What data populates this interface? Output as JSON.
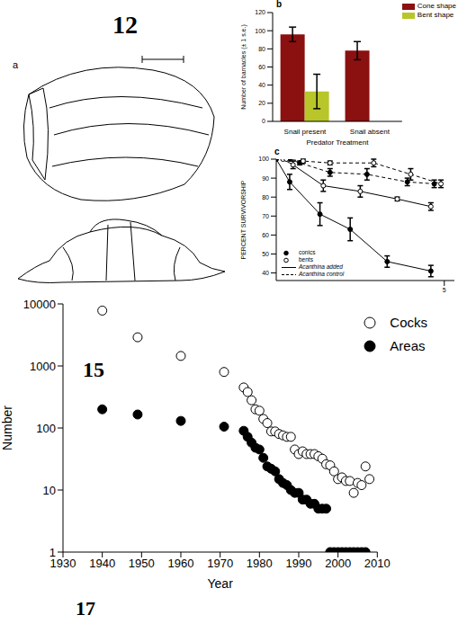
{
  "figure": {
    "labels": [
      "12",
      "15",
      "17"
    ],
    "drawing": {
      "letter": "a",
      "scale": "1mm"
    }
  },
  "chart_data": [
    {
      "type": "bar",
      "letter": "b",
      "x_label": "Predator Treatment",
      "y_label": "Number of barnacles (± 1 s.e.)",
      "categories": [
        "Snail present",
        "Snail absent"
      ],
      "series": [
        {
          "name": "Cone shape",
          "color": "#8b1010",
          "values": [
            96,
            78
          ],
          "errors": [
            8,
            10
          ]
        },
        {
          "name": "Bent shape",
          "color": "#b8c62a",
          "values": [
            33,
            null
          ],
          "errors": [
            19,
            null
          ]
        }
      ],
      "ylim": [
        0,
        120
      ],
      "yticks": [
        0,
        20,
        40,
        60,
        80,
        100,
        120
      ],
      "legend": "upper right"
    },
    {
      "type": "line",
      "letter": "c",
      "y_label": "PERCENT SURVIVORSHIP",
      "xlim": [
        0,
        5.3
      ],
      "xticks": [
        5
      ],
      "ylim": [
        36,
        100
      ],
      "yticks": [
        40,
        50,
        60,
        70,
        80,
        90,
        100
      ],
      "series": [
        {
          "marker": "filled",
          "line_style": "solid",
          "x": [
            0,
            0.4,
            1.3,
            2.2,
            3.3,
            4.6
          ],
          "values": [
            100,
            88,
            71,
            63,
            46,
            41
          ],
          "errors": [
            0,
            4,
            6,
            6,
            3,
            3
          ]
        },
        {
          "marker": "open",
          "line_style": "solid",
          "x": [
            0.2,
            0.5,
            1.4,
            2.5,
            3.6,
            4.6
          ],
          "values": [
            100,
            97,
            86,
            83,
            79,
            75
          ],
          "errors": [
            0,
            2,
            3,
            3,
            1,
            2
          ]
        },
        {
          "marker": "filled",
          "line_style": "dashed",
          "x": [
            0.4,
            0.7,
            1.6,
            2.7,
            3.9,
            4.7
          ],
          "values": [
            100,
            98,
            93,
            92,
            88,
            87
          ],
          "errors": [
            0,
            1,
            2,
            3,
            2,
            2
          ]
        },
        {
          "marker": "open",
          "line_style": "dashed",
          "x": [
            0.3,
            0.8,
            1.6,
            2.9,
            4.0,
            4.9
          ],
          "values": [
            100,
            99,
            98,
            98,
            92,
            87
          ],
          "errors": [
            0,
            1,
            1,
            2,
            3,
            2
          ]
        }
      ],
      "key": [
        {
          "label": "conics",
          "marker": "filled"
        },
        {
          "label": "bents",
          "marker": "open"
        },
        {
          "label": "Acanthina added",
          "line_style": "solid"
        },
        {
          "label": "Acanthina control",
          "line_style": "dashed"
        }
      ]
    },
    {
      "type": "scatter",
      "x_label": "Year",
      "y_label": "Number",
      "log": "y",
      "xlim": [
        1930,
        2010
      ],
      "xticks": [
        1930,
        1940,
        1950,
        1960,
        1970,
        1980,
        1990,
        2000,
        2010
      ],
      "ylim": [
        1,
        10000
      ],
      "yticks": [
        1,
        10,
        100,
        1000,
        10000
      ],
      "legend": "upper right",
      "series": [
        {
          "name": "Cocks",
          "marker": "open",
          "color": "#000000",
          "x": [
            1940,
            1949,
            1960,
            1971,
            1976,
            1977,
            1978,
            1979,
            1980,
            1981,
            1982,
            1983,
            1984,
            1985,
            1986,
            1987,
            1988,
            1989,
            1990,
            1991,
            1992,
            1993,
            1994,
            1995,
            1996,
            1997,
            1998,
            1999,
            2000,
            2001,
            2002,
            2003,
            2004,
            2005,
            2006,
            2007,
            2008
          ],
          "values": [
            7800,
            2900,
            1450,
            800,
            450,
            380,
            280,
            200,
            190,
            140,
            120,
            88,
            88,
            80,
            76,
            72,
            72,
            45,
            38,
            42,
            38,
            38,
            38,
            35,
            32,
            26,
            25,
            20,
            15,
            16,
            14,
            14,
            9,
            13,
            12,
            24,
            15
          ]
        },
        {
          "name": "Areas",
          "marker": "filled",
          "color": "#000000",
          "x": [
            1940,
            1949,
            1960,
            1971,
            1976,
            1977,
            1978,
            1979,
            1980,
            1981,
            1982,
            1983,
            1984,
            1985,
            1986,
            1987,
            1988,
            1989,
            1990,
            1991,
            1992,
            1993,
            1994,
            1995,
            1996,
            1997,
            1998,
            1999,
            2000,
            2001,
            2002,
            2003,
            2004,
            2005,
            2006,
            2007
          ],
          "values": [
            200,
            165,
            130,
            105,
            90,
            72,
            58,
            48,
            45,
            33,
            24,
            22,
            20,
            15,
            13,
            12,
            10,
            9,
            9,
            7,
            7,
            6,
            6,
            5,
            5,
            5,
            1,
            1,
            1,
            1,
            1,
            1,
            1,
            1,
            1,
            1
          ]
        }
      ]
    }
  ]
}
